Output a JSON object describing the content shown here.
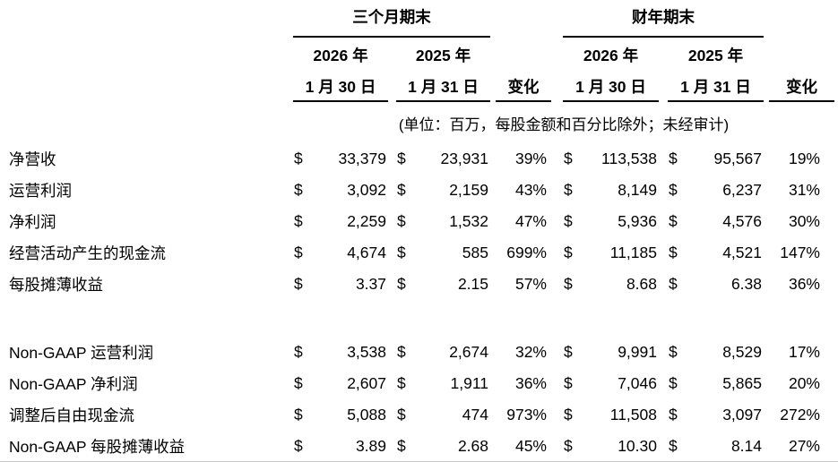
{
  "table": {
    "group_headers": [
      {
        "label": "三个月期末"
      },
      {
        "label": "财年期末"
      }
    ],
    "column_headers": {
      "quarter": [
        {
          "year": "2026 年",
          "date": "1 月 30 日"
        },
        {
          "year": "2025 年",
          "date": "1 月 31 日"
        }
      ],
      "fiscal_year": [
        {
          "year": "2026 年",
          "date": "1 月 30 日"
        },
        {
          "year": "2025 年",
          "date": "1 月 31 日"
        }
      ],
      "change_label": "变化"
    },
    "unit_note": "(单位：百万，每股金额和百分比除外；未经审计)",
    "currency_symbol": "$",
    "sections": [
      {
        "name": "gaap",
        "rows": [
          {
            "label": "净营收",
            "q_2026": "33,379",
            "q_2025": "23,931",
            "q_change": "39%",
            "fy_2026": "113,538",
            "fy_2025": "95,567",
            "fy_change": "19%"
          },
          {
            "label": "运营利润",
            "q_2026": "3,092",
            "q_2025": "2,159",
            "q_change": "43%",
            "fy_2026": "8,149",
            "fy_2025": "6,237",
            "fy_change": "31%"
          },
          {
            "label": "净利润",
            "q_2026": "2,259",
            "q_2025": "1,532",
            "q_change": "47%",
            "fy_2026": "5,936",
            "fy_2025": "4,576",
            "fy_change": "30%"
          },
          {
            "label": "经营活动产生的现金流",
            "q_2026": "4,674",
            "q_2025": "585",
            "q_change": "699%",
            "fy_2026": "11,185",
            "fy_2025": "4,521",
            "fy_change": "147%"
          },
          {
            "label": "每股摊薄收益",
            "q_2026": "3.37",
            "q_2025": "2.15",
            "q_change": "57%",
            "fy_2026": "8.68",
            "fy_2025": "6.38",
            "fy_change": "36%"
          }
        ]
      },
      {
        "name": "non-gaap",
        "rows": [
          {
            "label": "Non-GAAP 运营利润",
            "q_2026": "3,538",
            "q_2025": "2,674",
            "q_change": "32%",
            "fy_2026": "9,991",
            "fy_2025": "8,529",
            "fy_change": "17%"
          },
          {
            "label": "Non-GAAP 净利润",
            "q_2026": "2,607",
            "q_2025": "1,911",
            "q_change": "36%",
            "fy_2026": "7,046",
            "fy_2025": "5,865",
            "fy_change": "20%"
          },
          {
            "label": "调整后自由现金流",
            "q_2026": "5,088",
            "q_2025": "474",
            "q_change": "973%",
            "fy_2026": "11,508",
            "fy_2025": "3,097",
            "fy_change": "272%"
          },
          {
            "label": "Non-GAAP 每股摊薄收益",
            "q_2026": "3.89",
            "q_2025": "2.68",
            "q_change": "45%",
            "fy_2026": "10.30",
            "fy_2025": "8.14",
            "fy_change": "27%"
          }
        ]
      }
    ]
  }
}
